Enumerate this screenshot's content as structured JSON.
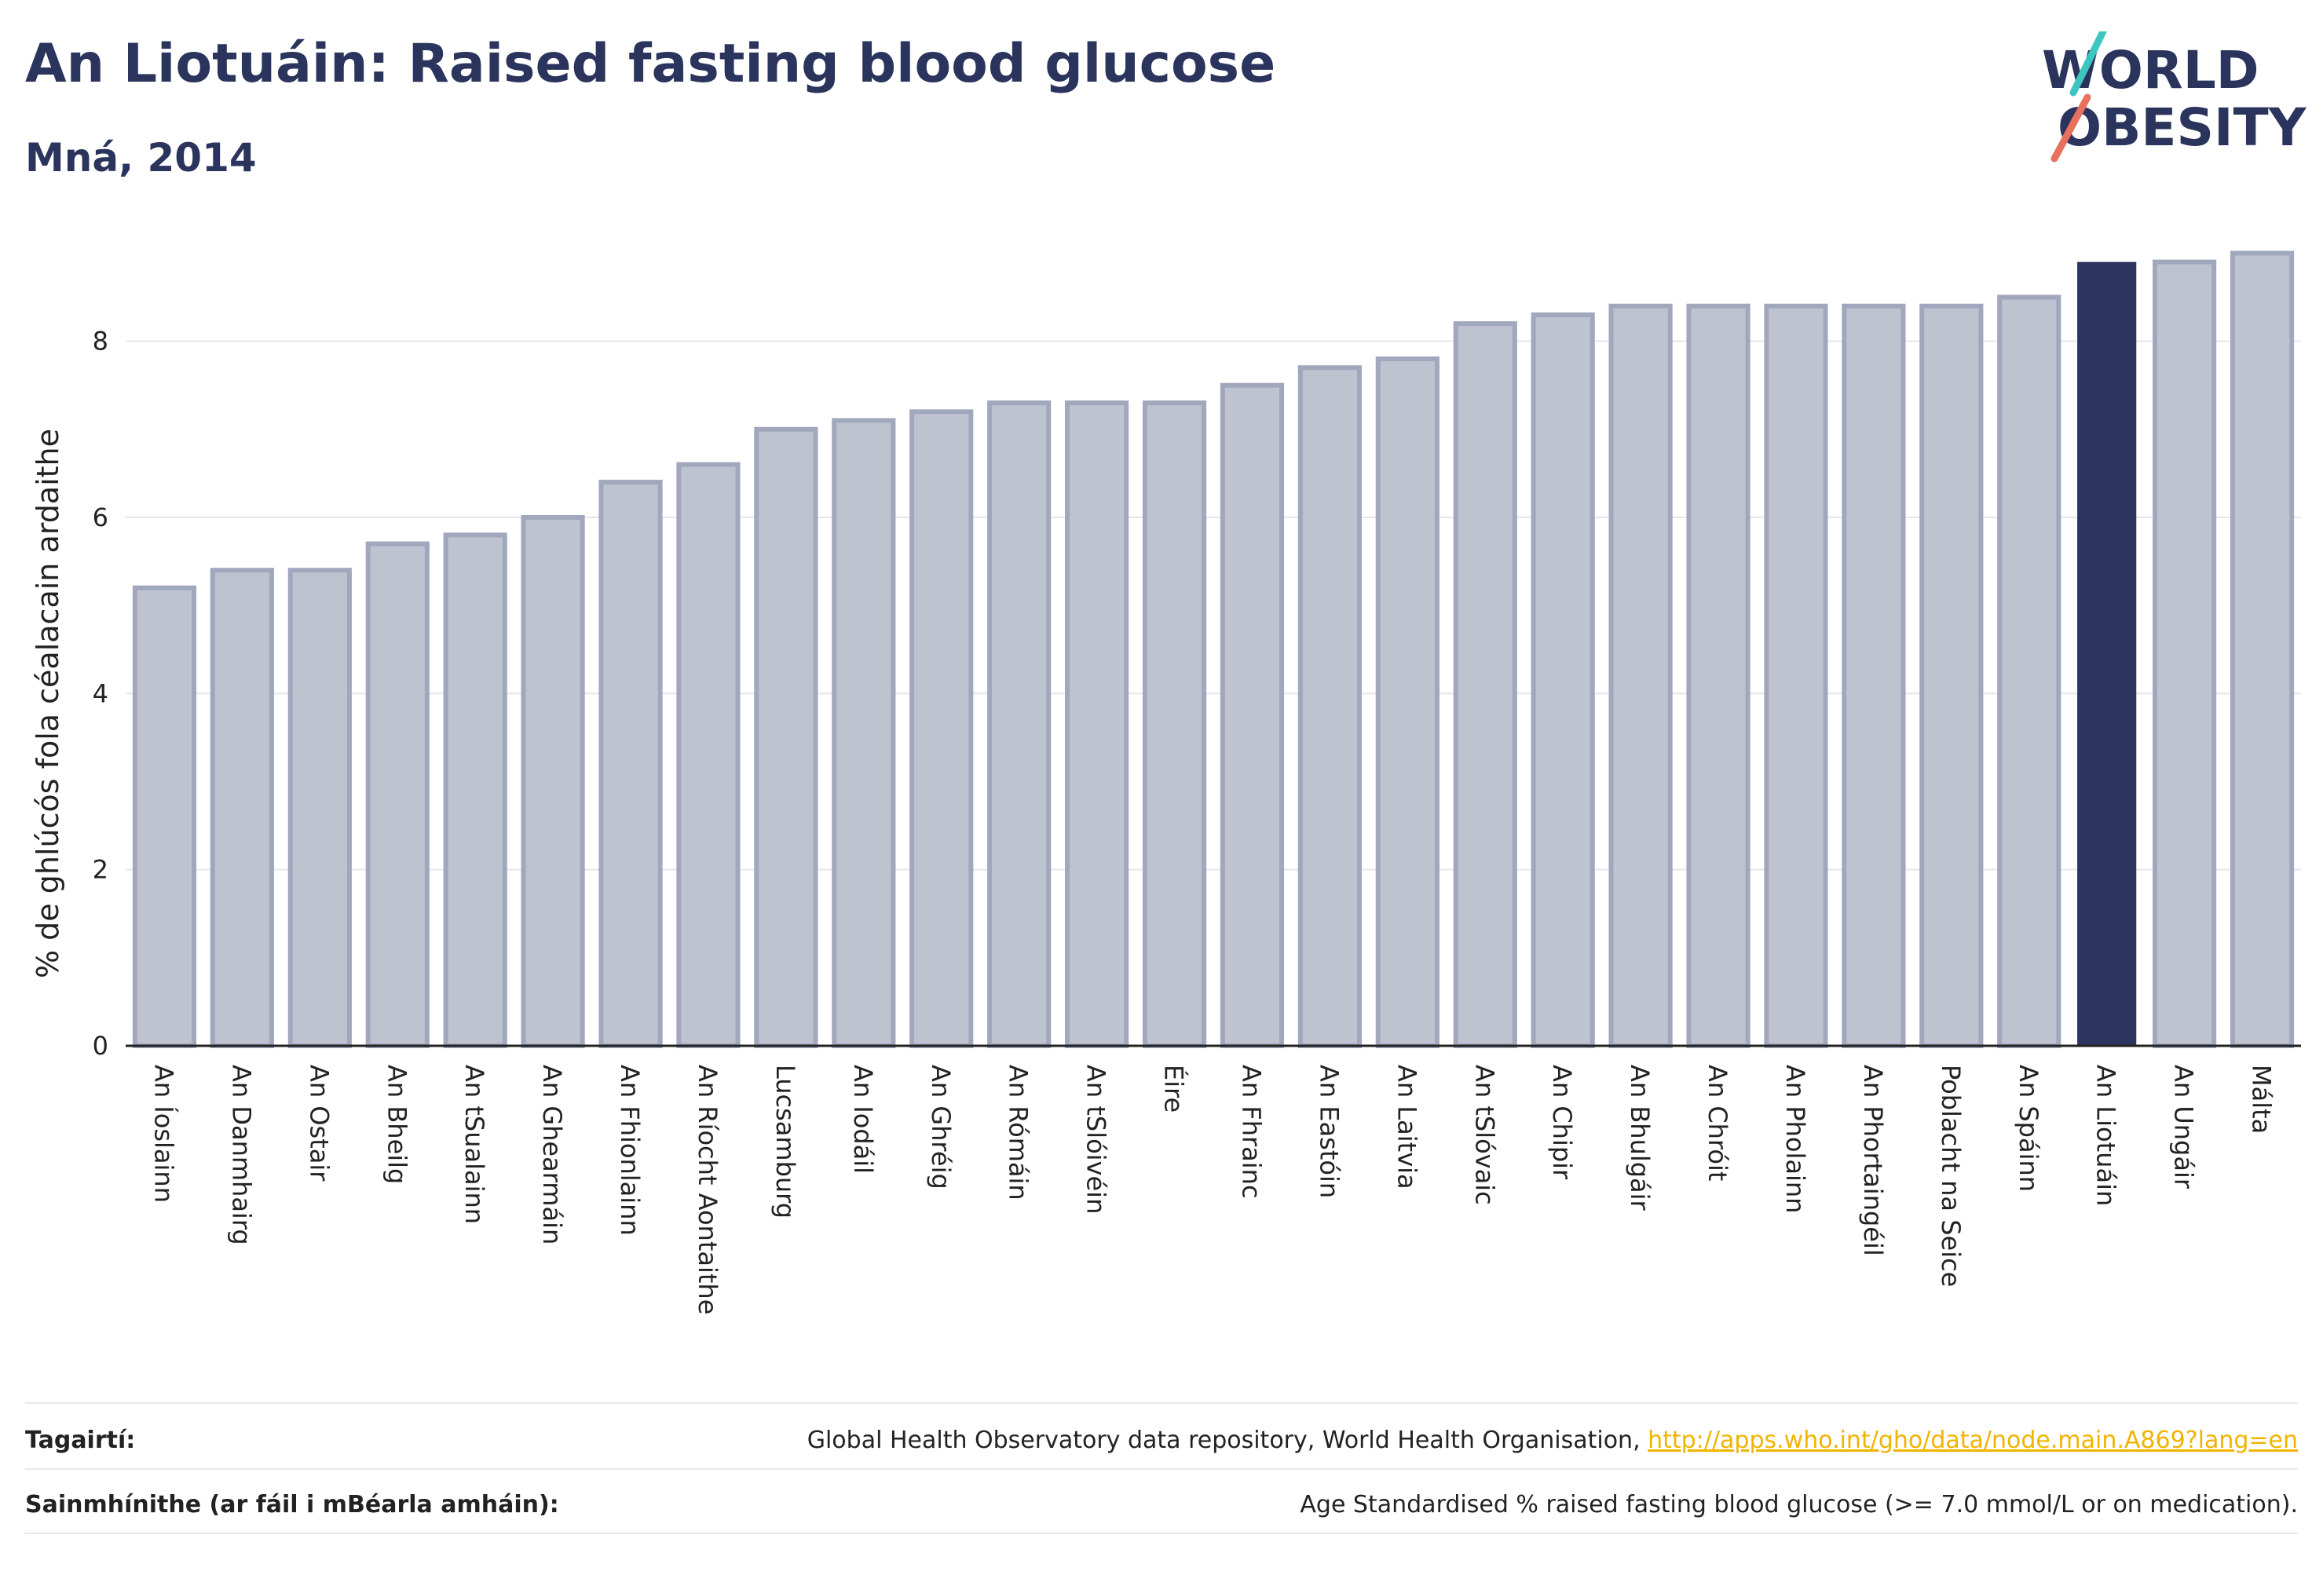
{
  "header": {
    "title": "An Liotuáin: Raised fasting blood glucose",
    "subtitle": "Mná, 2014"
  },
  "logo": {
    "line1": "WORLD",
    "line2": "OBESITY"
  },
  "colors": {
    "bar": "#bfc3d0",
    "bar_border": "#a1a7bc",
    "highlight": "#2a345c",
    "axis": "#222222",
    "grid": "#e6e6ea"
  },
  "chart_data": {
    "type": "bar",
    "ylabel": "% de ghlúcós fola céalacain ardaithe",
    "ylim": [
      0,
      9.2
    ],
    "yticks": [
      0,
      2,
      4,
      6,
      8
    ],
    "grid": true,
    "highlight": "An Liotuáin",
    "categories": [
      "An Íoslainn",
      "An Danmhairg",
      "An Ostair",
      "An Bheilg",
      "An tSualainn",
      "An Ghearmáin",
      "An Fhionlainn",
      "An Ríocht Aontaithe",
      "Lucsamburg",
      "An Iodáil",
      "An Ghréig",
      "An Rómáin",
      "An tSlóivéin",
      "Éire",
      "An Fhrainc",
      "An Eastóin",
      "An Laitvia",
      "An tSlóvaic",
      "An Chipir",
      "An Bhulgáir",
      "An Chróit",
      "An Pholainn",
      "An Phortaingéil",
      "Poblacht na Seice",
      "An Spáinn",
      "An Liotuáin",
      "An Ungáir",
      "Málta"
    ],
    "values": [
      5.2,
      5.4,
      5.4,
      5.7,
      5.8,
      6.0,
      6.4,
      6.6,
      7.0,
      7.1,
      7.2,
      7.3,
      7.3,
      7.3,
      7.5,
      7.7,
      7.8,
      8.2,
      8.3,
      8.4,
      8.4,
      8.4,
      8.4,
      8.4,
      8.5,
      8.9,
      8.9,
      9.0
    ]
  },
  "footer": {
    "references_label": "Tagairtí:",
    "references_text": "Global Health Observatory data repository, World Health Organisation, ",
    "references_link": "http://apps.who.int/gho/data/node.main.A869?lang=en",
    "definitions_label": "Sainmhínithe (ar fáil i mBéarla amháin):",
    "definitions_text": "Age Standardised % raised fasting blood glucose (>= 7.0 mmol/L or on medication)."
  }
}
